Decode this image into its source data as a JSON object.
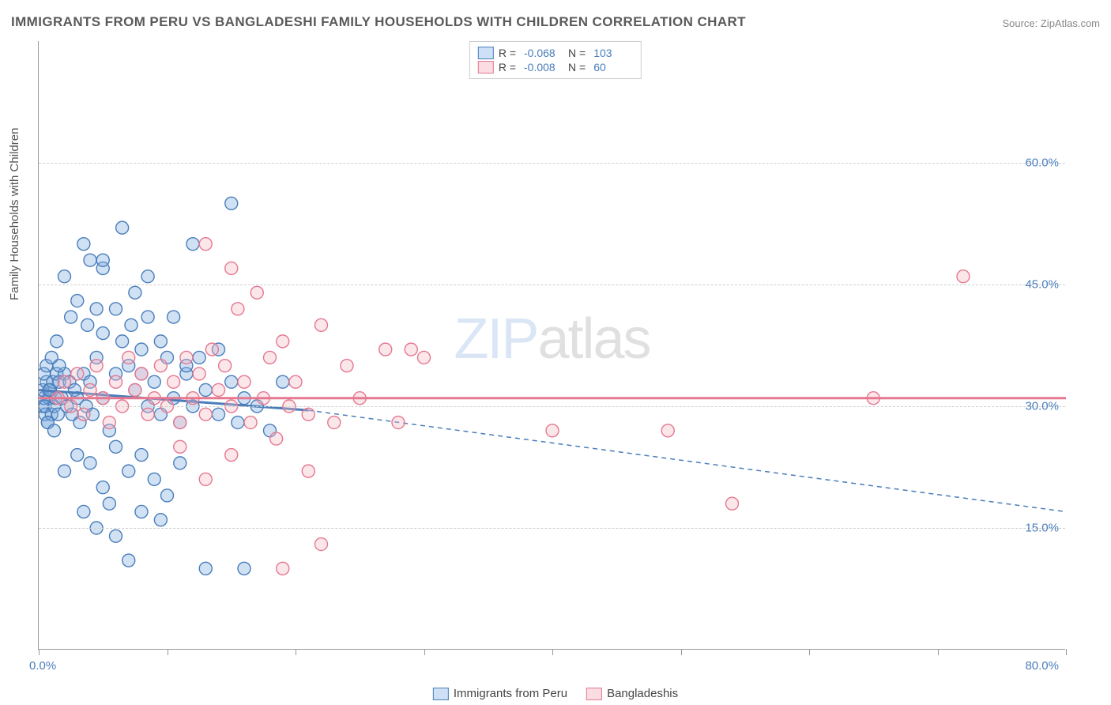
{
  "title": "IMMIGRANTS FROM PERU VS BANGLADESHI FAMILY HOUSEHOLDS WITH CHILDREN CORRELATION CHART",
  "source": "Source: ZipAtlas.com",
  "yaxis_title": "Family Households with Children",
  "watermark_bold": "ZIP",
  "watermark_thin": "atlas",
  "chart": {
    "type": "scatter",
    "xlim": [
      0,
      80
    ],
    "ylim": [
      0,
      75
    ],
    "yticks": [
      15,
      30,
      45,
      60
    ],
    "ytick_labels": [
      "15.0%",
      "30.0%",
      "45.0%",
      "60.0%"
    ],
    "xticks": [
      0,
      10,
      20,
      30,
      40,
      50,
      60,
      70,
      80
    ],
    "x_min_label": "0.0%",
    "x_max_label": "80.0%",
    "background_color": "#ffffff",
    "grid_color": "#d0d0d0",
    "axis_color": "#999999",
    "marker_radius": 8,
    "marker_stroke_width": 1.4,
    "marker_fill_opacity": 0.35,
    "label_color": "#4a7ebb",
    "title_color": "#5a5a5a",
    "title_fontsize": 17,
    "label_fontsize": 15
  },
  "series": [
    {
      "name": "Immigrants from Peru",
      "color": "#7aa8e0",
      "stroke": "#4a7ebb",
      "R": "-0.068",
      "N": "103",
      "trend": {
        "y0": 32,
        "y_solid_end": 29.5,
        "x_solid_end": 21,
        "y1": 17
      },
      "points": [
        [
          0.3,
          30
        ],
        [
          0.4,
          31
        ],
        [
          0.5,
          29
        ],
        [
          0.3,
          32
        ],
        [
          0.6,
          33
        ],
        [
          0.7,
          28
        ],
        [
          0.4,
          34
        ],
        [
          0.8,
          31
        ],
        [
          0.5,
          30
        ],
        [
          0.9,
          32
        ],
        [
          1.0,
          29
        ],
        [
          1.1,
          33
        ],
        [
          0.6,
          35
        ],
        [
          1.2,
          30
        ],
        [
          0.7,
          28
        ],
        [
          1.3,
          31
        ],
        [
          1.4,
          34
        ],
        [
          0.8,
          32
        ],
        [
          1.5,
          29
        ],
        [
          1.6,
          33
        ],
        [
          1.0,
          36
        ],
        [
          1.8,
          31
        ],
        [
          2.0,
          34
        ],
        [
          1.2,
          27
        ],
        [
          2.2,
          30
        ],
        [
          2.4,
          33
        ],
        [
          1.4,
          38
        ],
        [
          2.6,
          29
        ],
        [
          2.8,
          32
        ],
        [
          1.6,
          35
        ],
        [
          3.0,
          31
        ],
        [
          3.2,
          28
        ],
        [
          3.5,
          34
        ],
        [
          3.7,
          30
        ],
        [
          4.0,
          33
        ],
        [
          4.2,
          29
        ],
        [
          4.5,
          36
        ],
        [
          5.0,
          31
        ],
        [
          5.5,
          27
        ],
        [
          6.0,
          34
        ],
        [
          2.5,
          41
        ],
        [
          3.0,
          43
        ],
        [
          3.8,
          40
        ],
        [
          4.5,
          42
        ],
        [
          5.0,
          39
        ],
        [
          2.0,
          46
        ],
        [
          6.5,
          38
        ],
        [
          7.0,
          35
        ],
        [
          7.5,
          32
        ],
        [
          8.0,
          34
        ],
        [
          8.5,
          30
        ],
        [
          9.0,
          33
        ],
        [
          9.5,
          29
        ],
        [
          10.0,
          36
        ],
        [
          6.0,
          42
        ],
        [
          7.2,
          40
        ],
        [
          8.0,
          37
        ],
        [
          4.0,
          48
        ],
        [
          5.0,
          47
        ],
        [
          3.5,
          50
        ],
        [
          10.5,
          31
        ],
        [
          11.0,
          28
        ],
        [
          11.5,
          34
        ],
        [
          12.0,
          30
        ],
        [
          8.5,
          41
        ],
        [
          9.5,
          38
        ],
        [
          13.0,
          32
        ],
        [
          14.0,
          29
        ],
        [
          15.0,
          33
        ],
        [
          12.5,
          36
        ],
        [
          2.0,
          22
        ],
        [
          3.0,
          24
        ],
        [
          4.0,
          23
        ],
        [
          5.0,
          20
        ],
        [
          6.0,
          25
        ],
        [
          7.0,
          22
        ],
        [
          8.0,
          24
        ],
        [
          5.5,
          18
        ],
        [
          3.5,
          17
        ],
        [
          9.0,
          21
        ],
        [
          10.0,
          19
        ],
        [
          4.5,
          15
        ],
        [
          6.0,
          14
        ],
        [
          8.0,
          17
        ],
        [
          15.5,
          28
        ],
        [
          16.0,
          31
        ],
        [
          13.0,
          10
        ],
        [
          7.0,
          11
        ],
        [
          9.5,
          16
        ],
        [
          11.0,
          23
        ],
        [
          5.0,
          48
        ],
        [
          12.0,
          50
        ],
        [
          15.0,
          55
        ],
        [
          14.0,
          37
        ],
        [
          16.0,
          10
        ],
        [
          7.5,
          44
        ],
        [
          8.5,
          46
        ],
        [
          6.5,
          52
        ],
        [
          10.5,
          41
        ],
        [
          11.5,
          35
        ],
        [
          17.0,
          30
        ],
        [
          18.0,
          27
        ],
        [
          19.0,
          33
        ]
      ]
    },
    {
      "name": "Bangladeshis",
      "color": "#f4b8c2",
      "stroke": "#e57890",
      "R": "-0.008",
      "N": "60",
      "trend": {
        "y0": 31,
        "y_solid_end": 31,
        "x_solid_end": 80,
        "y1": 31
      },
      "points": [
        [
          1.5,
          31
        ],
        [
          2.0,
          33
        ],
        [
          2.5,
          30
        ],
        [
          3.0,
          34
        ],
        [
          3.5,
          29
        ],
        [
          4.0,
          32
        ],
        [
          4.5,
          35
        ],
        [
          5.0,
          31
        ],
        [
          5.5,
          28
        ],
        [
          6.0,
          33
        ],
        [
          6.5,
          30
        ],
        [
          7.0,
          36
        ],
        [
          7.5,
          32
        ],
        [
          8.0,
          34
        ],
        [
          8.5,
          29
        ],
        [
          9.0,
          31
        ],
        [
          9.5,
          35
        ],
        [
          10.0,
          30
        ],
        [
          10.5,
          33
        ],
        [
          11.0,
          28
        ],
        [
          11.5,
          36
        ],
        [
          12.0,
          31
        ],
        [
          12.5,
          34
        ],
        [
          13.0,
          29
        ],
        [
          13.5,
          37
        ],
        [
          14.0,
          32
        ],
        [
          14.5,
          35
        ],
        [
          15.0,
          30
        ],
        [
          15.5,
          42
        ],
        [
          16.0,
          33
        ],
        [
          16.5,
          28
        ],
        [
          17.0,
          44
        ],
        [
          17.5,
          31
        ],
        [
          18.0,
          36
        ],
        [
          18.5,
          26
        ],
        [
          19.0,
          38
        ],
        [
          19.5,
          30
        ],
        [
          20.0,
          33
        ],
        [
          21.0,
          29
        ],
        [
          22.0,
          40
        ],
        [
          23.0,
          28
        ],
        [
          24.0,
          35
        ],
        [
          25.0,
          31
        ],
        [
          27.0,
          37
        ],
        [
          29.0,
          37
        ],
        [
          30.0,
          36
        ],
        [
          21.0,
          22
        ],
        [
          19.0,
          10
        ],
        [
          22.0,
          13
        ],
        [
          13.0,
          50
        ],
        [
          15.0,
          47
        ],
        [
          11.0,
          25
        ],
        [
          13.0,
          21
        ],
        [
          15.0,
          24
        ],
        [
          28.0,
          28
        ],
        [
          40.0,
          27
        ],
        [
          49.0,
          27
        ],
        [
          54.0,
          18
        ],
        [
          72.0,
          46
        ],
        [
          65.0,
          31
        ]
      ]
    }
  ],
  "legend_top": {
    "r_label": "R =",
    "n_label": "N ="
  },
  "legend_bottom": [
    {
      "label": "Immigrants from Peru",
      "fill": "#cde0f5",
      "stroke": "#4a7ebb"
    },
    {
      "label": "Bangladeshis",
      "fill": "#fadce2",
      "stroke": "#e57890"
    }
  ]
}
